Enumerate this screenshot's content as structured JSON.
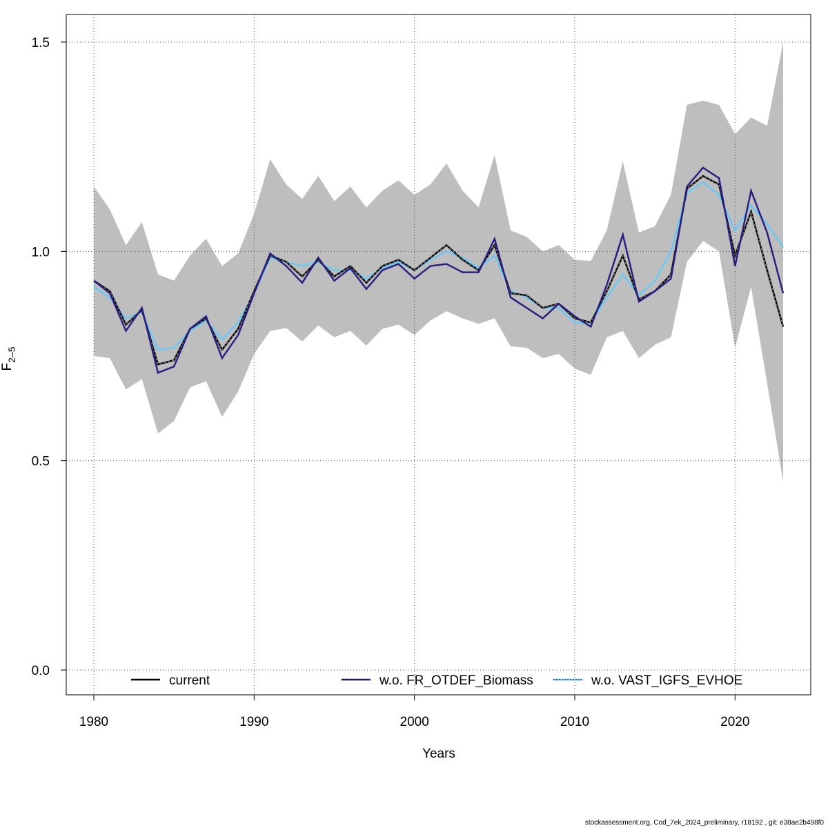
{
  "footer": "stockassessment.org, Cod_7ek_2024_preliminary, r18192 , git: e38ae2b498f0",
  "chart_data": {
    "type": "line",
    "xlabel": "Years",
    "ylabel_main": "F",
    "ylabel_sub": "2–5",
    "xlim": [
      1980,
      2023
    ],
    "ylim": [
      0,
      1.5
    ],
    "x_ticks": [
      1980,
      1990,
      2000,
      2010,
      2020
    ],
    "y_ticks": [
      0.0,
      0.5,
      1.0,
      1.5
    ],
    "y_tick_labels": [
      "0.0",
      "0.5",
      "1.0",
      "1.5"
    ],
    "grid": true,
    "legend_placement": "bottom",
    "band_color": "#bebebe",
    "x": [
      1980,
      1981,
      1982,
      1983,
      1984,
      1985,
      1986,
      1987,
      1988,
      1989,
      1990,
      1991,
      1992,
      1993,
      1994,
      1995,
      1996,
      1997,
      1998,
      1999,
      2000,
      2001,
      2002,
      2003,
      2004,
      2005,
      2006,
      2007,
      2008,
      2009,
      2010,
      2011,
      2012,
      2013,
      2014,
      2015,
      2016,
      2017,
      2018,
      2019,
      2020,
      2021,
      2022,
      2023
    ],
    "band": {
      "upper": [
        1.155,
        1.1,
        1.015,
        1.07,
        0.945,
        0.93,
        0.99,
        1.03,
        0.965,
        0.995,
        1.09,
        1.22,
        1.16,
        1.125,
        1.18,
        1.12,
        1.155,
        1.105,
        1.145,
        1.17,
        1.135,
        1.16,
        1.21,
        1.145,
        1.105,
        1.23,
        1.05,
        1.035,
        1.0,
        1.015,
        0.98,
        0.977,
        1.05,
        1.215,
        1.045,
        1.06,
        1.135,
        1.35,
        1.36,
        1.35,
        1.28,
        1.32,
        1.3,
        1.5
      ],
      "lower": [
        0.75,
        0.745,
        0.67,
        0.695,
        0.565,
        0.595,
        0.675,
        0.69,
        0.605,
        0.665,
        0.755,
        0.81,
        0.817,
        0.785,
        0.823,
        0.795,
        0.81,
        0.775,
        0.815,
        0.825,
        0.8,
        0.835,
        0.857,
        0.84,
        0.827,
        0.84,
        0.773,
        0.77,
        0.745,
        0.755,
        0.72,
        0.705,
        0.795,
        0.81,
        0.745,
        0.777,
        0.795,
        0.975,
        1.025,
        1.0,
        0.77,
        0.915,
        0.685,
        0.45
      ]
    },
    "series": [
      {
        "name": "current",
        "color": "#000000",
        "style": "solid",
        "values": [
          0.93,
          0.905,
          0.825,
          0.86,
          0.73,
          0.74,
          0.815,
          0.84,
          0.765,
          0.815,
          0.905,
          0.99,
          0.975,
          0.94,
          0.98,
          0.94,
          0.965,
          0.925,
          0.965,
          0.98,
          0.955,
          0.985,
          1.015,
          0.98,
          0.955,
          1.015,
          0.9,
          0.895,
          0.865,
          0.875,
          0.84,
          0.83,
          0.905,
          0.99,
          0.885,
          0.905,
          0.945,
          1.15,
          1.18,
          1.16,
          0.99,
          1.095,
          0.955,
          0.82
        ]
      },
      {
        "name": "w.o. FR_OTDEF_Biomass",
        "color": "#2b1f7f",
        "style": "solid",
        "values": [
          0.93,
          0.9,
          0.81,
          0.865,
          0.71,
          0.725,
          0.815,
          0.845,
          0.745,
          0.8,
          0.9,
          0.995,
          0.965,
          0.925,
          0.985,
          0.93,
          0.96,
          0.91,
          0.955,
          0.97,
          0.935,
          0.965,
          0.97,
          0.95,
          0.95,
          1.03,
          0.89,
          0.865,
          0.84,
          0.875,
          0.845,
          0.82,
          0.92,
          1.04,
          0.88,
          0.905,
          0.935,
          1.155,
          1.2,
          1.175,
          0.965,
          1.145,
          1.045,
          0.9
        ]
      },
      {
        "name": "w.o. VAST_IGFS_EVHOE",
        "color": "#6ec8f5",
        "style": "solid",
        "values": [
          0.915,
          0.89,
          0.84,
          0.855,
          0.765,
          0.77,
          0.81,
          0.835,
          0.79,
          0.83,
          0.9,
          0.985,
          0.975,
          0.965,
          0.975,
          0.955,
          0.955,
          0.935,
          0.96,
          0.975,
          0.955,
          0.98,
          1.0,
          0.985,
          0.96,
          0.99,
          0.905,
          0.89,
          0.865,
          0.865,
          0.83,
          0.83,
          0.89,
          0.945,
          0.895,
          0.93,
          1.0,
          1.14,
          1.165,
          1.135,
          1.05,
          1.11,
          1.065,
          1.01
        ]
      }
    ]
  }
}
